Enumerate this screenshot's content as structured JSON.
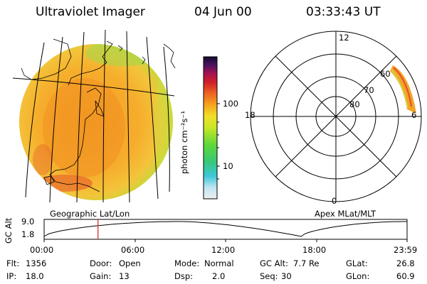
{
  "header": {
    "title": "Ultraviolet Imager",
    "date": "04 Jun 00",
    "time": "03:33:43 UT"
  },
  "colorbar": {
    "unit_label": "photon cm⁻²s⁻¹",
    "ticks": [
      "100",
      "10"
    ]
  },
  "polar": {
    "mlt_labels": [
      "12",
      "18",
      "6",
      "0"
    ],
    "mlat_labels": [
      "60",
      "70",
      "80"
    ]
  },
  "map_captions": {
    "left": "Geographic Lat/Lon",
    "right": "Apex MLat/MLT"
  },
  "altitude_plot": {
    "axis_label": "GC Alt",
    "y_ticks": [
      "9.0",
      "1.8"
    ],
    "x_ticks": [
      "00:00",
      "06:00",
      "12:00",
      "18:00",
      "23:59"
    ],
    "marker_time": "03:33:43",
    "curve": [
      [
        0,
        1.8
      ],
      [
        9,
        9.0
      ],
      [
        17,
        1.8
      ],
      [
        24,
        9.0
      ]
    ]
  },
  "info": {
    "flt_label": "Flt:",
    "flt_value": "1356",
    "ip_label": "IP:",
    "ip_value": "18.0",
    "door_label": "Door:",
    "door_value": "Open",
    "gain_label": "Gain:",
    "gain_value": "13",
    "mode_label": "Mode:",
    "mode_value": "Normal",
    "dsp_label": "Dsp:",
    "dsp_value": "2.0",
    "gcalt_label": "GC Alt:",
    "gcalt_value": "7.7 Re",
    "seq_label": "Seq:",
    "seq_value": "30",
    "glat_label": "GLat:",
    "glat_value": "26.8",
    "glon_label": "GLon:",
    "glon_value": "60.9"
  },
  "colors": {
    "disk_base": "#f2a428",
    "marker": "#d81e1e"
  }
}
